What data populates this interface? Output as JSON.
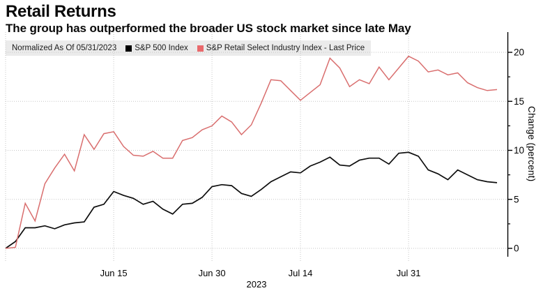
{
  "header": {
    "title": "Retail Returns",
    "subtitle": "The group has outperformed the broader US stock market since late May"
  },
  "legend": {
    "background": "#ebebeb",
    "items": [
      {
        "label": "Normalized As Of 05/31/2023",
        "swatch": null
      },
      {
        "label": "S&P 500 Index",
        "swatch": "#000000"
      },
      {
        "label": "S&P Retail Select Industry Index - Last Price",
        "swatch": "#e9696c"
      }
    ]
  },
  "chart_data": {
    "type": "line",
    "title": "Retail Returns",
    "subtitle": "The group has outperformed the broader US stock market since late May",
    "xlabel": "",
    "ylabel": "Change (percent)",
    "x_axis_year": "2023",
    "y_ticks": [
      0,
      5,
      10,
      15,
      20
    ],
    "y_minor_ticks": [
      2.5,
      7.5,
      12.5,
      17.5
    ],
    "ylim": [
      -0.9,
      21.9
    ],
    "grid": "dotted",
    "legend_position": "top-left",
    "y_axis_side": "right",
    "x_tick_labels": [
      "Jun 15",
      "Jun 30",
      "Jul 14",
      "Jul 31"
    ],
    "x_tick_dates": [
      "06/15",
      "06/30",
      "07/14",
      "07/31"
    ],
    "dates": [
      "05/31",
      "06/01",
      "06/02",
      "06/05",
      "06/06",
      "06/07",
      "06/08",
      "06/09",
      "06/12",
      "06/13",
      "06/14",
      "06/15",
      "06/16",
      "06/20",
      "06/21",
      "06/22",
      "06/23",
      "06/26",
      "06/27",
      "06/28",
      "06/29",
      "06/30",
      "07/03",
      "07/05",
      "07/06",
      "07/07",
      "07/10",
      "07/11",
      "07/12",
      "07/13",
      "07/14",
      "07/17",
      "07/18",
      "07/19",
      "07/20",
      "07/21",
      "07/24",
      "07/25",
      "07/26",
      "07/27",
      "07/28",
      "07/31",
      "08/01",
      "08/02",
      "08/03",
      "08/04",
      "08/07",
      "08/08",
      "08/09",
      "08/10",
      "08/11"
    ],
    "series": [
      {
        "name": "S&P 500 Index",
        "color": "#0d0d0d",
        "values": [
          0,
          0.7,
          2.1,
          2.1,
          2.3,
          2.0,
          2.4,
          2.6,
          2.7,
          4.2,
          4.5,
          5.8,
          5.4,
          5.1,
          4.5,
          4.8,
          4.0,
          3.5,
          4.5,
          4.6,
          5.2,
          6.3,
          6.5,
          6.4,
          5.6,
          5.3,
          6.0,
          6.8,
          7.3,
          7.8,
          7.7,
          8.4,
          8.8,
          9.3,
          8.5,
          8.4,
          9.0,
          9.2,
          9.2,
          8.6,
          9.7,
          9.8,
          9.4,
          8.0,
          7.6,
          7.0,
          8.0,
          7.5,
          7.0,
          6.8,
          6.7
        ]
      },
      {
        "name": "S&P Retail Select Industry Index - Last Price",
        "color": "#d96e6e",
        "values": [
          0,
          0.1,
          4.6,
          2.8,
          6.6,
          8.2,
          9.6,
          7.9,
          11.6,
          10.1,
          11.7,
          11.9,
          10.4,
          9.5,
          9.4,
          9.9,
          9.2,
          9.2,
          11.0,
          11.3,
          12.1,
          12.5,
          13.5,
          12.9,
          11.6,
          12.6,
          14.8,
          17.2,
          17.1,
          16.1,
          15.1,
          15.9,
          16.7,
          19.4,
          18.4,
          16.5,
          17.2,
          16.8,
          18.5,
          17.2,
          18.4,
          19.6,
          19.1,
          18.0,
          18.2,
          17.7,
          17.9,
          16.9,
          16.4,
          16.1,
          16.2
        ]
      }
    ]
  }
}
